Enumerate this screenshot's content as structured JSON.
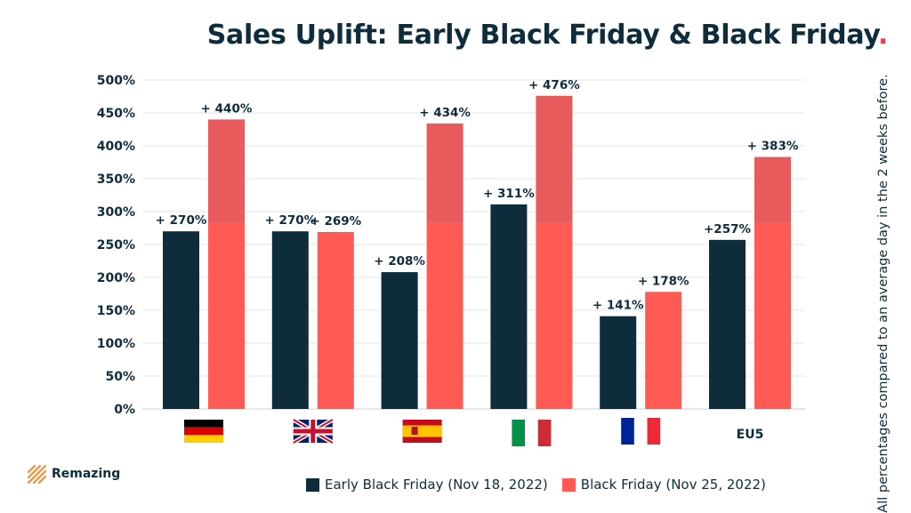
{
  "title": "Sales Uplift: Early Black Friday & Black Friday",
  "title_suffix": ".",
  "side_note": "All percentages compared to an average day in the 2 weeks before.",
  "brand": {
    "name": "Remazing"
  },
  "colors": {
    "early": "#0e2c3b",
    "bf": "#ff5a54",
    "bf_top": "#e85a5b",
    "grid": "#e6e6e6",
    "text": "#0e2c3b"
  },
  "chart_data": {
    "type": "bar",
    "ylim": [
      0,
      500
    ],
    "yticks": [
      "0%",
      "50%",
      "100%",
      "150%",
      "200%",
      "250%",
      "300%",
      "350%",
      "400%",
      "450%",
      "500%"
    ],
    "categories": [
      "Germany",
      "United Kingdom",
      "Spain",
      "Italy",
      "France",
      "EU5"
    ],
    "category_labels": [
      "",
      "",
      "",
      "",
      "",
      "EU5"
    ],
    "series": [
      {
        "name": "Early Black Friday (Nov 18, 2022)",
        "values": [
          270,
          270,
          208,
          311,
          141,
          257
        ],
        "labels": [
          "+ 270%",
          "+ 270%",
          "+ 208%",
          "+ 311%",
          "+ 141%",
          "+257%"
        ]
      },
      {
        "name": "Black Friday (Nov 25, 2022)",
        "values": [
          440,
          269,
          434,
          476,
          178,
          383
        ],
        "labels": [
          "+ 440%",
          "+ 269%",
          "+ 434%",
          "+ 476%",
          "+ 178%",
          "+ 383%"
        ]
      }
    ]
  }
}
